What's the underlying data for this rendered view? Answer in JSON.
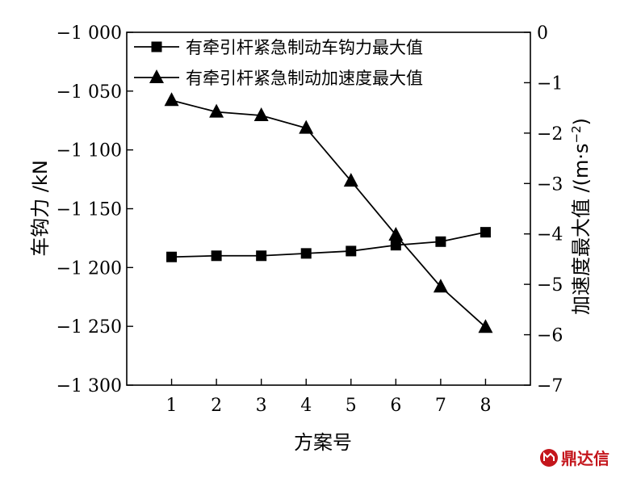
{
  "chart_data": {
    "type": "line",
    "x": [
      1,
      2,
      3,
      4,
      5,
      6,
      7,
      8
    ],
    "xlabel": "方案号",
    "ylabel_left": "车钩力 /kN",
    "ylabel_right": "加速度最大值 /(m·s",
    "ylabel_right_sup": "−2",
    "ylabel_right_close": ")",
    "xlim": [
      0,
      9
    ],
    "ylim_left": [
      -1300,
      -1000
    ],
    "ylim_right": [
      -7,
      0
    ],
    "x_ticks": [
      1,
      2,
      3,
      4,
      5,
      6,
      7,
      8
    ],
    "left_ticks": [
      {
        "value": -1000,
        "label": "−1 000"
      },
      {
        "value": -1050,
        "label": "−1 050"
      },
      {
        "value": -1100,
        "label": "−1 100"
      },
      {
        "value": -1150,
        "label": "−1 150"
      },
      {
        "value": -1200,
        "label": "−1 200"
      },
      {
        "value": -1250,
        "label": "−1 250"
      },
      {
        "value": -1300,
        "label": "−1 300"
      }
    ],
    "right_ticks": [
      {
        "value": 0,
        "label": "0"
      },
      {
        "value": -1,
        "label": "−1"
      },
      {
        "value": -2,
        "label": "−2"
      },
      {
        "value": -3,
        "label": "−3"
      },
      {
        "value": -4,
        "label": "−4"
      },
      {
        "value": -5,
        "label": "−5"
      },
      {
        "value": -6,
        "label": "−6"
      },
      {
        "value": -7,
        "label": "−7"
      }
    ],
    "grid": false,
    "legend_position": "top",
    "series": [
      {
        "name": "有牵引杆紧急制动车钩力最大值",
        "axis": "left",
        "marker": "square",
        "color": "#000000",
        "values": [
          -1191,
          -1190,
          -1190,
          -1188,
          -1186,
          -1181,
          -1178,
          -1170
        ]
      },
      {
        "name": "有牵引杆紧急制动加速度最大值",
        "axis": "right",
        "marker": "triangle",
        "color": "#000000",
        "values": [
          -1.35,
          -1.58,
          -1.65,
          -1.9,
          -2.95,
          -4.02,
          -5.05,
          -5.85
        ]
      }
    ]
  },
  "watermark": {
    "text": "鼎达信",
    "color": "#c4161c"
  }
}
